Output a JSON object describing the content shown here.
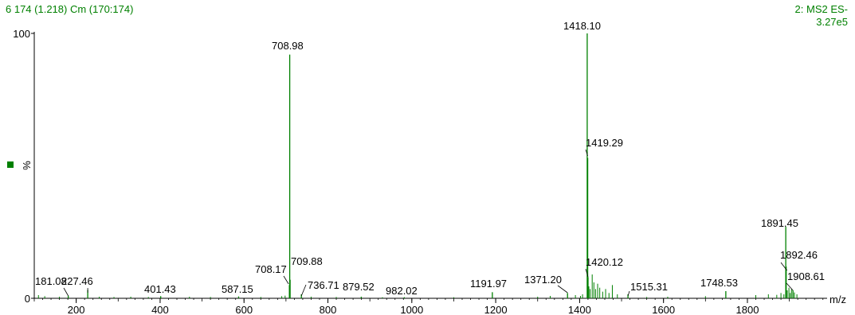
{
  "header": {
    "left": "6 174 (1.218) Cm (170:174)",
    "right_line1": "2: MS2 ES-",
    "right_line2": "3.27e5"
  },
  "colors": {
    "spectrum": "#008000",
    "axis": "#000000",
    "text": "#000000"
  },
  "chart_data": {
    "type": "bar",
    "title": "6 174 (1.218) Cm (170:174)",
    "xlabel": "m/z",
    "ylabel": "%",
    "xlim": [
      100,
      1990
    ],
    "ylim": [
      0,
      100
    ],
    "xticks": [
      200,
      400,
      600,
      800,
      1000,
      1200,
      1400,
      1600,
      1800
    ],
    "yticks": [
      0,
      100
    ],
    "grid": false,
    "legend": "left marker",
    "labeled_peaks": [
      {
        "x": 181.08,
        "y": 1.0,
        "label": "181.08"
      },
      {
        "x": 227.46,
        "y": 3.2,
        "label": "227.46"
      },
      {
        "x": 401.43,
        "y": 0.8,
        "label": "401.43"
      },
      {
        "x": 587.15,
        "y": 0.7,
        "label": "587.15"
      },
      {
        "x": 708.17,
        "y": 5.0,
        "label": "708.17"
      },
      {
        "x": 708.98,
        "y": 92.0,
        "label": "708.98"
      },
      {
        "x": 709.88,
        "y": 7.0,
        "label": "709.88"
      },
      {
        "x": 736.71,
        "y": 1.5,
        "label": "736.71"
      },
      {
        "x": 879.52,
        "y": 0.6,
        "label": "879.52"
      },
      {
        "x": 982.02,
        "y": 0.4,
        "label": "982.02"
      },
      {
        "x": 1191.97,
        "y": 2.3,
        "label": "1191.97"
      },
      {
        "x": 1371.2,
        "y": 2.0,
        "label": "1371.20"
      },
      {
        "x": 1418.1,
        "y": 100.0,
        "label": "1418.10"
      },
      {
        "x": 1419.29,
        "y": 53.0,
        "label": "1419.29"
      },
      {
        "x": 1420.12,
        "y": 8.0,
        "label": "1420.12"
      },
      {
        "x": 1515.31,
        "y": 1.5,
        "label": "1515.31"
      },
      {
        "x": 1748.53,
        "y": 2.7,
        "label": "1748.53"
      },
      {
        "x": 1891.45,
        "y": 27.0,
        "label": "1891.45"
      },
      {
        "x": 1892.46,
        "y": 12.0,
        "label": "1892.46"
      },
      {
        "x": 1908.61,
        "y": 3.0,
        "label": "1908.61"
      }
    ],
    "minor_peaks": [
      {
        "x": 110,
        "y": 1.2
      },
      {
        "x": 125,
        "y": 0.8
      },
      {
        "x": 160,
        "y": 0.6
      },
      {
        "x": 255,
        "y": 0.6
      },
      {
        "x": 290,
        "y": 0.5
      },
      {
        "x": 330,
        "y": 0.6
      },
      {
        "x": 372,
        "y": 0.5
      },
      {
        "x": 470,
        "y": 0.6
      },
      {
        "x": 520,
        "y": 0.5
      },
      {
        "x": 640,
        "y": 0.5
      },
      {
        "x": 690,
        "y": 0.8
      },
      {
        "x": 698,
        "y": 1.0
      },
      {
        "x": 760,
        "y": 0.6
      },
      {
        "x": 820,
        "y": 0.5
      },
      {
        "x": 930,
        "y": 0.4
      },
      {
        "x": 1100,
        "y": 0.4
      },
      {
        "x": 1300,
        "y": 0.6
      },
      {
        "x": 1330,
        "y": 0.9
      },
      {
        "x": 1390,
        "y": 1.2
      },
      {
        "x": 1402,
        "y": 0.9
      },
      {
        "x": 1407,
        "y": 1.5
      },
      {
        "x": 1422,
        "y": 4.5
      },
      {
        "x": 1425,
        "y": 3.5
      },
      {
        "x": 1430,
        "y": 9.0
      },
      {
        "x": 1434,
        "y": 6.0
      },
      {
        "x": 1438,
        "y": 3.5
      },
      {
        "x": 1443,
        "y": 5.5
      },
      {
        "x": 1448,
        "y": 4.0
      },
      {
        "x": 1455,
        "y": 2.5
      },
      {
        "x": 1462,
        "y": 3.5
      },
      {
        "x": 1470,
        "y": 2.0
      },
      {
        "x": 1478,
        "y": 5.0
      },
      {
        "x": 1490,
        "y": 1.5
      },
      {
        "x": 1560,
        "y": 0.5
      },
      {
        "x": 1610,
        "y": 0.6
      },
      {
        "x": 1700,
        "y": 0.8
      },
      {
        "x": 1820,
        "y": 1.2
      },
      {
        "x": 1850,
        "y": 1.5
      },
      {
        "x": 1870,
        "y": 1.3
      },
      {
        "x": 1880,
        "y": 2.0
      },
      {
        "x": 1887,
        "y": 1.5
      },
      {
        "x": 1895,
        "y": 3.0
      },
      {
        "x": 1899,
        "y": 4.0
      },
      {
        "x": 1902,
        "y": 2.0
      },
      {
        "x": 1905,
        "y": 3.5
      },
      {
        "x": 1912,
        "y": 2.2
      },
      {
        "x": 1918,
        "y": 1.5
      }
    ]
  }
}
